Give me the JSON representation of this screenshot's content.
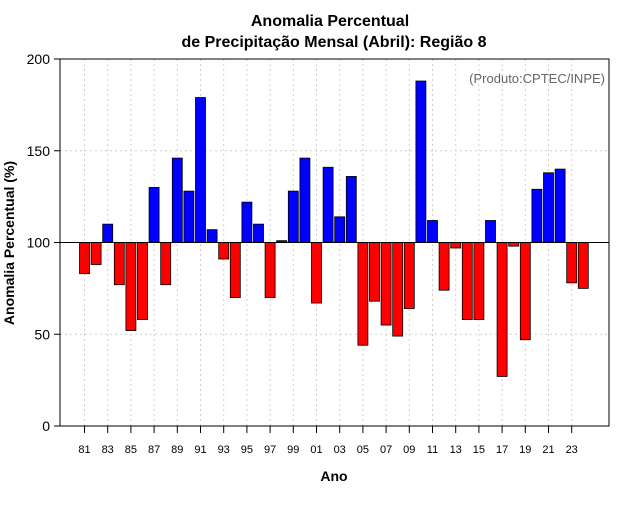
{
  "chart_data": {
    "type": "bar",
    "title_line1": "Anomalia Percentual",
    "title_line2": "de Precipitação Mensal (Abril): Região 8",
    "annotation": "(Produto:CPTEC/INPE)",
    "xlabel": "Ano",
    "ylabel": "Anomalia Percentual (%)",
    "ylim": [
      0,
      200
    ],
    "yticks": [
      "0",
      "50",
      "100",
      "150",
      "200"
    ],
    "baseline": 100,
    "grid": true,
    "colors": {
      "above": "#0000ff",
      "below": "#ff0000",
      "edge": "#000000",
      "grid": "#d0d0d0"
    },
    "xticklabels": [
      "81",
      "83",
      "85",
      "87",
      "89",
      "91",
      "93",
      "95",
      "97",
      "99",
      "01",
      "03",
      "05",
      "07",
      "09",
      "11",
      "13",
      "15",
      "17",
      "19",
      "21",
      "23"
    ],
    "years": [
      1981,
      1982,
      1983,
      1984,
      1985,
      1986,
      1987,
      1988,
      1989,
      1990,
      1991,
      1992,
      1993,
      1994,
      1995,
      1996,
      1997,
      1998,
      1999,
      2000,
      2001,
      2002,
      2003,
      2004,
      2005,
      2006,
      2007,
      2008,
      2009,
      2010,
      2011,
      2012,
      2013,
      2014,
      2015,
      2016,
      2017,
      2018,
      2019,
      2020,
      2021,
      2022,
      2023,
      2024
    ],
    "values": [
      83,
      88,
      110,
      77,
      52,
      58,
      130,
      77,
      146,
      128,
      179,
      107,
      91,
      70,
      122,
      110,
      70,
      101,
      128,
      146,
      67,
      141,
      114,
      136,
      44,
      68,
      55,
      49,
      64,
      188,
      112,
      74,
      97,
      58,
      58,
      112,
      27,
      98,
      47,
      129,
      138,
      140,
      78,
      75
    ]
  }
}
